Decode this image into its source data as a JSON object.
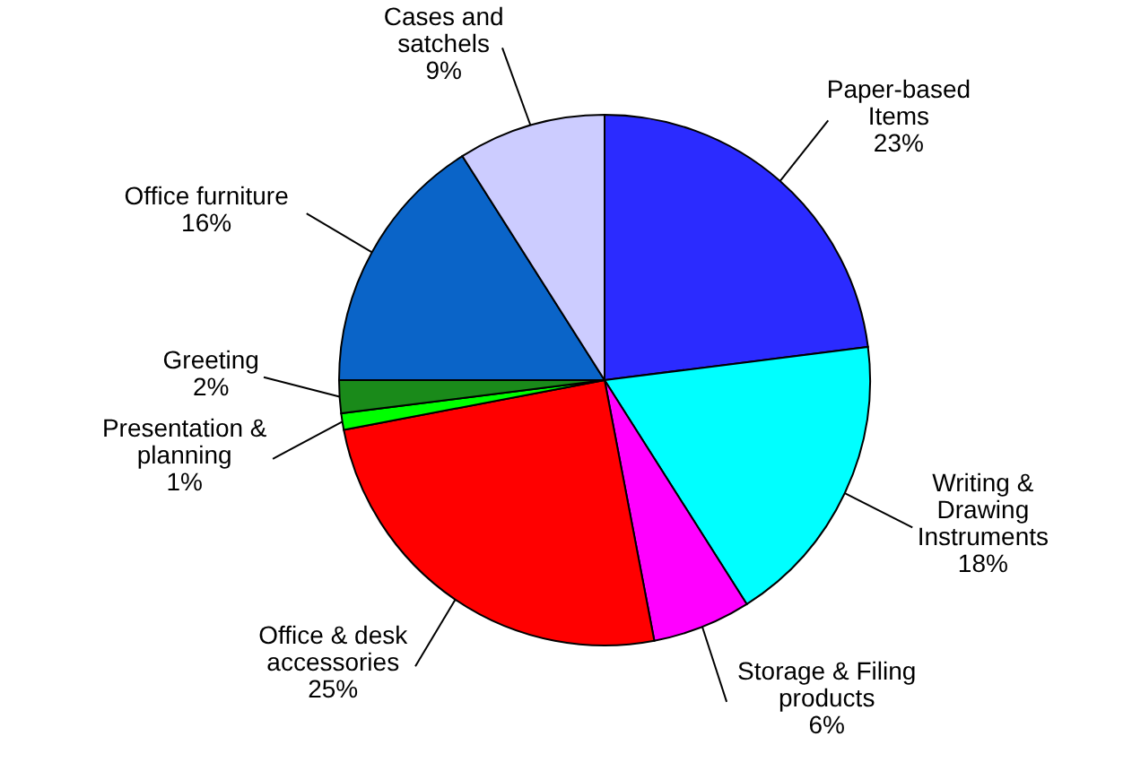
{
  "chart_data": {
    "type": "pie",
    "categories": [
      "Paper-based\nItems",
      "Writing &\nDrawing\nInstruments",
      "Storage & Filing\nproducts",
      "Office & desk\naccessories",
      "Presentation &\nplanning",
      "Greeting",
      "Office furniture",
      "Cases and\nsatchels"
    ],
    "values": [
      23,
      18,
      6,
      25,
      1,
      2,
      16,
      9
    ],
    "value_labels": [
      "23%",
      "18%",
      "6%",
      "25%",
      "1%",
      "2%",
      "16%",
      "9%"
    ],
    "colors": [
      "#2b2bff",
      "#00ffff",
      "#ff00ff",
      "#ff0000",
      "#00ff00",
      "#1a8a1a",
      "#0a64c8",
      "#ccccff"
    ]
  }
}
